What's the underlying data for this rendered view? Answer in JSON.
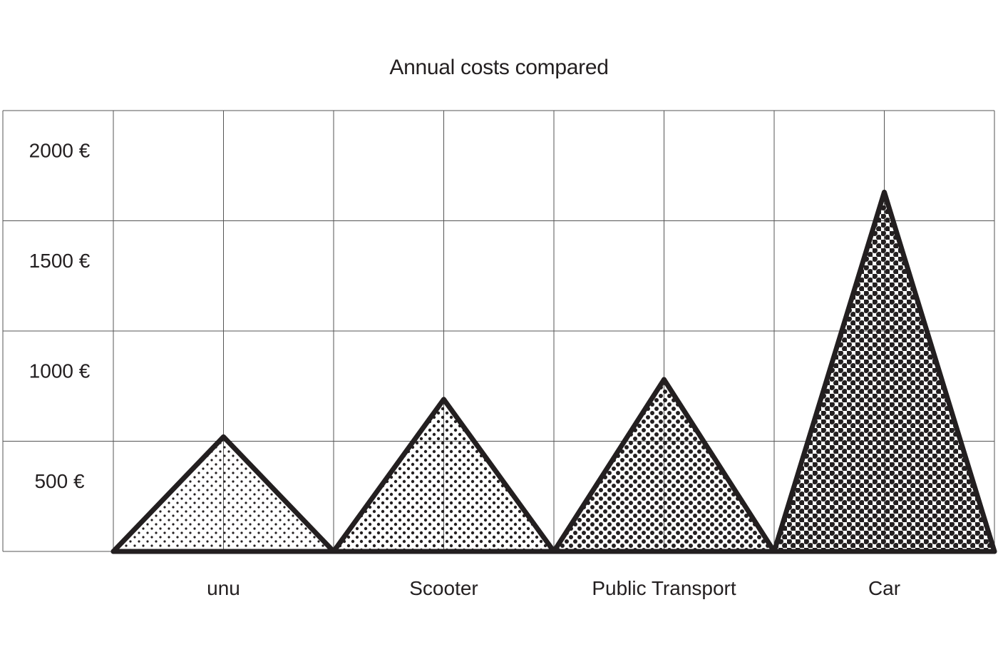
{
  "chart_data": {
    "type": "area",
    "title": "Annual costs compared",
    "xlabel": "",
    "ylabel": "",
    "categories": [
      "unu",
      "Scooter",
      "Public Transport",
      "Car"
    ],
    "values": [
      520,
      690,
      780,
      1630
    ],
    "ylim": [
      0,
      2000
    ],
    "yticks": [
      500,
      1000,
      1500,
      2000
    ],
    "ytick_labels": [
      "500 €",
      "1000 €",
      "1500 €",
      "2000 €"
    ],
    "grid": true,
    "legend": "none",
    "colors": {
      "ink": "#231f20",
      "grid": "#555555",
      "background": "#ffffff"
    },
    "fill_pattern_density": [
      0.15,
      0.3,
      0.5,
      0.75
    ]
  }
}
